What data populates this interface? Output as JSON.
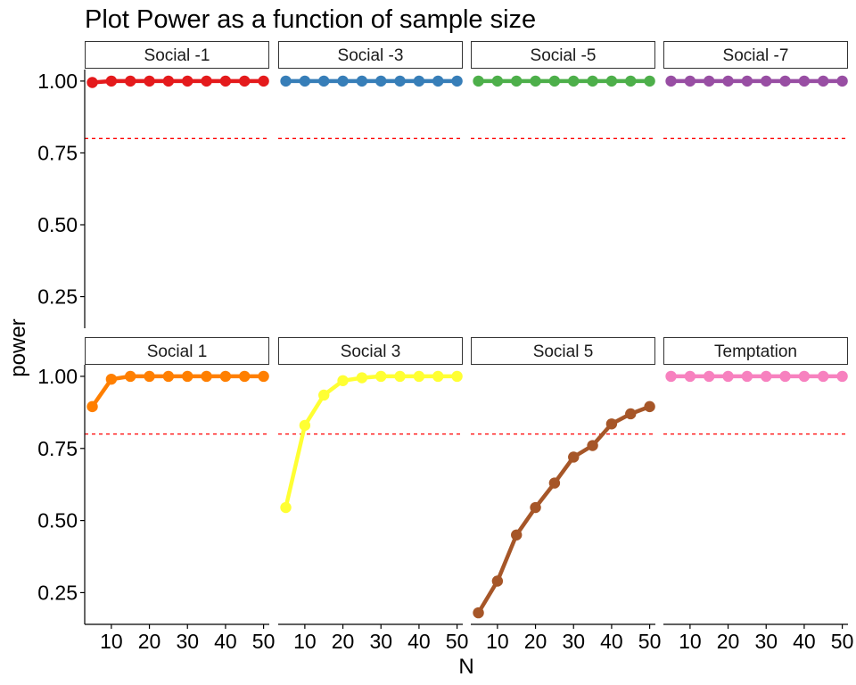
{
  "chart_data": {
    "type": "line",
    "title": "Plot Power as a function of sample size",
    "xlabel": "N",
    "ylabel": "power",
    "x": [
      5,
      10,
      15,
      20,
      25,
      30,
      35,
      40,
      45,
      50
    ],
    "xticks": [
      10,
      20,
      30,
      40,
      50
    ],
    "xlim": [
      3,
      51.5
    ],
    "ylim": [
      0.14,
      1.04
    ],
    "yticks": [
      0.25,
      0.5,
      0.75,
      1.0
    ],
    "ytick_labels": [
      "0.25",
      "0.50",
      "0.75",
      "1.00"
    ],
    "reference_line": {
      "y": 0.8,
      "color": "#ff0000",
      "style": "dashed"
    },
    "grid": false,
    "facet_layout": {
      "rows": 2,
      "cols": 4
    },
    "series": [
      {
        "name": "Social -1",
        "color": "#e41a1c",
        "values": [
          0.995,
          1,
          1,
          1,
          1,
          1,
          1,
          1,
          1,
          1
        ]
      },
      {
        "name": "Social -3",
        "color": "#377eb8",
        "values": [
          1,
          1,
          1,
          1,
          1,
          1,
          1,
          1,
          1,
          1
        ]
      },
      {
        "name": "Social -5",
        "color": "#4daf4a",
        "values": [
          1,
          1,
          1,
          1,
          1,
          1,
          1,
          1,
          1,
          1
        ]
      },
      {
        "name": "Social -7",
        "color": "#984ea3",
        "values": [
          1,
          1,
          1,
          1,
          1,
          1,
          1,
          1,
          1,
          1
        ]
      },
      {
        "name": "Social 1",
        "color": "#ff7f00",
        "values": [
          0.895,
          0.99,
          1,
          1,
          1,
          1,
          1,
          1,
          1,
          1
        ]
      },
      {
        "name": "Social 3",
        "color": "#ffff33",
        "values": [
          0.545,
          0.83,
          0.935,
          0.985,
          0.995,
          1,
          1,
          1,
          1,
          1
        ]
      },
      {
        "name": "Social 5",
        "color": "#a65628",
        "values": [
          0.18,
          0.29,
          0.45,
          0.545,
          0.63,
          0.72,
          0.76,
          0.835,
          0.87,
          0.895
        ]
      },
      {
        "name": "Temptation",
        "color": "#f781bf",
        "values": [
          1,
          1,
          1,
          1,
          1,
          1,
          1,
          1,
          1,
          1
        ]
      }
    ]
  }
}
